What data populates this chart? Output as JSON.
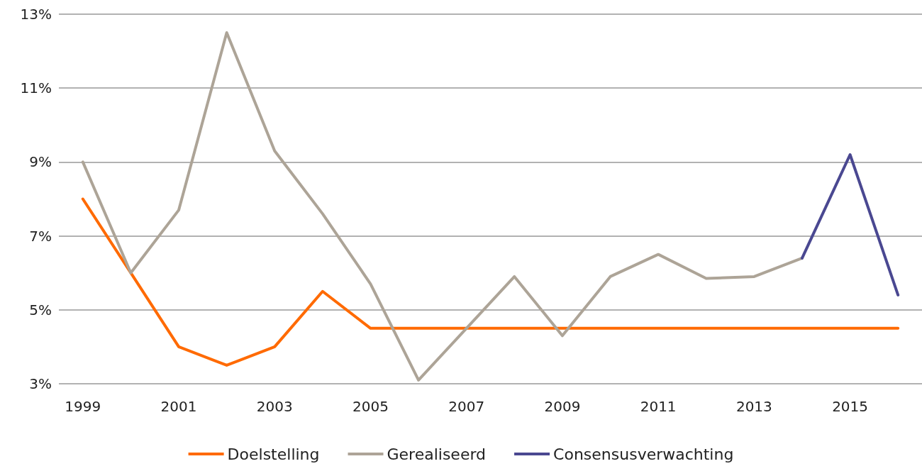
{
  "chart_data": {
    "type": "line",
    "categories": [
      "1999",
      null,
      "2001",
      null,
      "2003",
      null,
      "2005",
      null,
      "2007",
      null,
      "2009",
      null,
      "2011",
      null,
      "2013",
      null,
      "2015",
      null
    ],
    "series": [
      {
        "name": "Doelstelling",
        "color": "#ff6a00",
        "values": [
          8,
          6,
          4,
          3.5,
          4,
          5.5,
          4.5,
          4.5,
          4.5,
          4.5,
          4.5,
          4.5,
          4.5,
          4.5,
          4.5,
          4.5,
          4.5,
          4.5
        ]
      },
      {
        "name": "Gerealiseerd",
        "color": "#ada497",
        "values": [
          9.0,
          6.0,
          7.7,
          12.5,
          9.3,
          7.6,
          5.7,
          3.1,
          4.5,
          5.9,
          4.3,
          5.9,
          6.5,
          5.85,
          5.9,
          6.4,
          null,
          null
        ]
      },
      {
        "name": "Consensusverwachting",
        "color": "#4a4891",
        "values": [
          null,
          null,
          null,
          null,
          null,
          null,
          null,
          null,
          null,
          null,
          null,
          null,
          null,
          null,
          null,
          6.4,
          9.2,
          5.4
        ]
      }
    ],
    "ylim": [
      3,
      13
    ],
    "yticks": [
      {
        "value": 3,
        "label": "3%"
      },
      {
        "value": 5,
        "label": "5%"
      },
      {
        "value": 7,
        "label": "7%"
      },
      {
        "value": 9,
        "label": "9%"
      },
      {
        "value": 11,
        "label": "11%"
      },
      {
        "value": 13,
        "label": "13%"
      }
    ],
    "grid": "y",
    "legend": "bottom",
    "marker": "none",
    "line_style": "solid"
  }
}
